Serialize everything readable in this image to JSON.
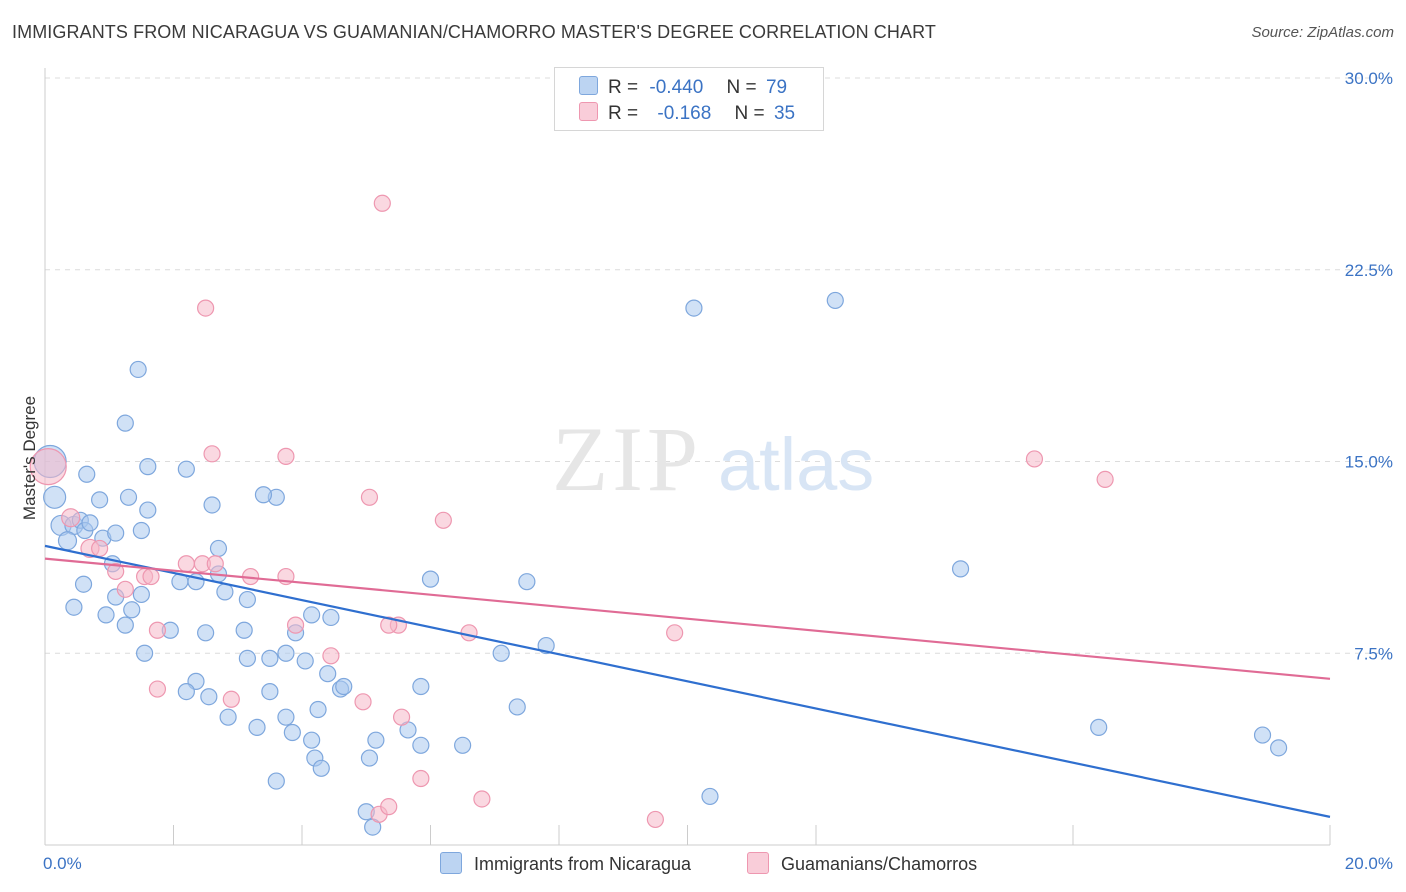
{
  "header": {
    "title": "IMMIGRANTS FROM NICARAGUA VS GUAMANIAN/CHAMORRO MASTER'S DEGREE CORRELATION CHART",
    "source": "Source: ZipAtlas.com"
  },
  "watermark": {
    "zip": "ZIP",
    "atlas": "atlas"
  },
  "legend": {
    "rows": [
      {
        "r_label": "R =",
        "r_value": "-0.440",
        "n_label": "N =",
        "n_value": "79"
      },
      {
        "r_label": "R =",
        "r_value": "-0.168",
        "n_label": "N =",
        "n_value": "35"
      }
    ]
  },
  "bottom_legend": {
    "series1": "Immigrants from Nicaragua",
    "series2": "Guamanians/Chamorros"
  },
  "colors": {
    "series1_fill": "#a9c8ee",
    "series1_stroke": "#7ea7dd",
    "series1_line": "#2f6fcf",
    "series2_fill": "#f6b8c9",
    "series2_stroke": "#ee97b0",
    "series2_line": "#e06b95",
    "tick_label": "#3b73c4",
    "grid": "#dcdcdc"
  },
  "chart_data": {
    "type": "scatter",
    "ylabel": "Master's Degree",
    "xlim": [
      0,
      20
    ],
    "ylim": [
      0,
      30
    ],
    "x_tick_labels": [
      "0.0%",
      "20.0%"
    ],
    "y_ticks": [
      7.5,
      15.0,
      22.5,
      30.0
    ],
    "y_tick_labels": [
      "7.5%",
      "15.0%",
      "22.5%",
      "30.0%"
    ],
    "grid": true,
    "series": [
      {
        "name": "Immigrants from Nicaragua",
        "trend": {
          "x": [
            0,
            20
          ],
          "y": [
            11.7,
            1.1
          ]
        },
        "points": [
          [
            0.08,
            15.0,
            16
          ],
          [
            0.15,
            13.6,
            11
          ],
          [
            0.25,
            12.5,
            10
          ],
          [
            0.45,
            12.5,
            9
          ],
          [
            0.35,
            11.9,
            9
          ],
          [
            0.55,
            12.7,
            8
          ],
          [
            0.62,
            12.3,
            8
          ],
          [
            0.7,
            12.6,
            8
          ],
          [
            0.9,
            12.0,
            8
          ],
          [
            1.05,
            11.0,
            8
          ],
          [
            1.1,
            12.2,
            8
          ],
          [
            0.65,
            14.5,
            8
          ],
          [
            0.85,
            13.5,
            8
          ],
          [
            1.25,
            16.5,
            8
          ],
          [
            1.45,
            18.6,
            8
          ],
          [
            2.2,
            14.7,
            8
          ],
          [
            1.6,
            14.8,
            8
          ],
          [
            1.3,
            13.6,
            8
          ],
          [
            1.6,
            13.1,
            8
          ],
          [
            1.5,
            12.3,
            8
          ],
          [
            0.6,
            10.2,
            8
          ],
          [
            0.45,
            9.3,
            8
          ],
          [
            0.95,
            9.0,
            8
          ],
          [
            1.1,
            9.7,
            8
          ],
          [
            1.25,
            8.6,
            8
          ],
          [
            1.35,
            9.2,
            8
          ],
          [
            1.5,
            9.8,
            8
          ],
          [
            1.55,
            7.5,
            8
          ],
          [
            1.95,
            8.4,
            8
          ],
          [
            2.1,
            10.3,
            8
          ],
          [
            2.35,
            10.3,
            8
          ],
          [
            2.8,
            9.9,
            8
          ],
          [
            3.15,
            9.6,
            8
          ],
          [
            3.1,
            8.4,
            8
          ],
          [
            2.5,
            8.3,
            8
          ],
          [
            2.7,
            11.6,
            8
          ],
          [
            2.6,
            13.3,
            8
          ],
          [
            2.7,
            10.6,
            8
          ],
          [
            2.35,
            6.4,
            8
          ],
          [
            2.2,
            6.0,
            8
          ],
          [
            2.55,
            5.8,
            8
          ],
          [
            3.6,
            13.6,
            8
          ],
          [
            3.4,
            13.7,
            8
          ],
          [
            3.9,
            8.3,
            8
          ],
          [
            4.15,
            9.0,
            8
          ],
          [
            4.45,
            8.9,
            8
          ],
          [
            3.75,
            7.5,
            8
          ],
          [
            3.5,
            7.3,
            8
          ],
          [
            3.15,
            7.3,
            8
          ],
          [
            4.05,
            7.2,
            8
          ],
          [
            4.4,
            6.7,
            8
          ],
          [
            3.5,
            6.0,
            8
          ],
          [
            3.75,
            5.0,
            8
          ],
          [
            4.25,
            5.3,
            8
          ],
          [
            2.85,
            5.0,
            8
          ],
          [
            4.6,
            6.1,
            8
          ],
          [
            4.65,
            6.2,
            8
          ],
          [
            3.85,
            4.4,
            8
          ],
          [
            4.2,
            3.4,
            8
          ],
          [
            3.3,
            4.6,
            8
          ],
          [
            4.3,
            3.0,
            8
          ],
          [
            4.15,
            4.1,
            8
          ],
          [
            3.6,
            2.5,
            8
          ],
          [
            5.05,
            3.4,
            8
          ],
          [
            5.15,
            4.1,
            8
          ],
          [
            5.65,
            4.5,
            8
          ],
          [
            5.85,
            3.9,
            8
          ],
          [
            5.0,
            1.3,
            8
          ],
          [
            5.1,
            0.7,
            8
          ],
          [
            7.5,
            10.3,
            8
          ],
          [
            6.0,
            10.4,
            8
          ],
          [
            5.85,
            6.2,
            8
          ],
          [
            7.1,
            7.5,
            8
          ],
          [
            6.5,
            3.9,
            8
          ],
          [
            7.35,
            5.4,
            8
          ],
          [
            10.1,
            21.0,
            8
          ],
          [
            12.3,
            21.3,
            8
          ],
          [
            14.25,
            10.8,
            8
          ],
          [
            16.4,
            4.6,
            8
          ],
          [
            19.2,
            3.8,
            8
          ],
          [
            18.95,
            4.3,
            8
          ],
          [
            10.35,
            1.9,
            8
          ],
          [
            7.8,
            7.8,
            8
          ]
        ]
      },
      {
        "name": "Guamanians/Chamorros",
        "trend": {
          "x": [
            0,
            20
          ],
          "y": [
            11.2,
            6.5
          ]
        },
        "points": [
          [
            0.05,
            14.8,
            18
          ],
          [
            0.4,
            12.8,
            9
          ],
          [
            0.7,
            11.6,
            9
          ],
          [
            0.85,
            11.6,
            8
          ],
          [
            1.1,
            10.7,
            8
          ],
          [
            1.25,
            10.0,
            8
          ],
          [
            1.55,
            10.5,
            8
          ],
          [
            1.65,
            10.5,
            8
          ],
          [
            1.75,
            8.4,
            8
          ],
          [
            2.6,
            15.3,
            8
          ],
          [
            2.2,
            11.0,
            8
          ],
          [
            2.45,
            11.0,
            8
          ],
          [
            2.65,
            11.0,
            8
          ],
          [
            3.2,
            10.5,
            8
          ],
          [
            3.75,
            10.5,
            8
          ],
          [
            3.75,
            15.2,
            8
          ],
          [
            2.5,
            21.0,
            8
          ],
          [
            1.75,
            6.1,
            8
          ],
          [
            2.9,
            5.7,
            8
          ],
          [
            3.9,
            8.6,
            8
          ],
          [
            4.45,
            7.4,
            8
          ],
          [
            4.95,
            5.6,
            8
          ],
          [
            5.5,
            8.6,
            8
          ],
          [
            5.05,
            13.6,
            8
          ],
          [
            5.25,
            25.1,
            8
          ],
          [
            5.35,
            8.6,
            8
          ],
          [
            6.2,
            12.7,
            8
          ],
          [
            6.6,
            8.3,
            8
          ],
          [
            5.55,
            5.0,
            8
          ],
          [
            5.2,
            1.2,
            8
          ],
          [
            5.35,
            1.5,
            8
          ],
          [
            5.85,
            2.6,
            8
          ],
          [
            6.8,
            1.8,
            8
          ],
          [
            9.5,
            1.0,
            8
          ],
          [
            15.4,
            15.1,
            8
          ],
          [
            16.5,
            14.3,
            8
          ],
          [
            9.8,
            8.3,
            8
          ]
        ]
      }
    ]
  }
}
